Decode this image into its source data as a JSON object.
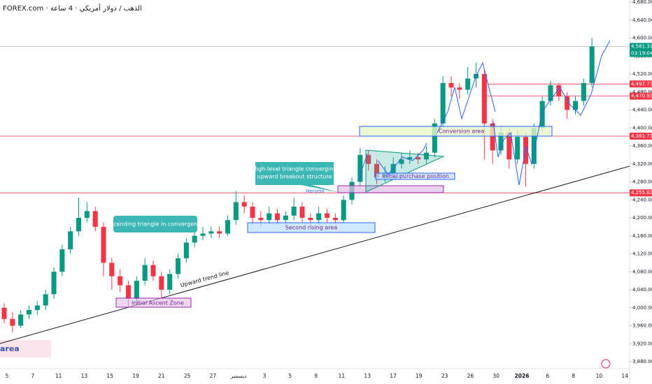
{
  "header": {
    "title": "FOREX.com · الذهب / دولار أمريكي · 4 ساعة"
  },
  "chart_data": {
    "type": "candlestick",
    "categories": [
      "5",
      "7",
      "11",
      "13",
      "15",
      "19",
      "21",
      "25",
      "27",
      "ديسمبر",
      "3",
      "5",
      "9",
      "11",
      "13",
      "17",
      "19",
      "23",
      "26",
      "30",
      "2026",
      "6",
      "8",
      "10",
      "14"
    ],
    "ohlc": [
      [
        4000,
        4010,
        3965,
        3975
      ],
      [
        3975,
        3990,
        3945,
        3960
      ],
      [
        3960,
        3995,
        3955,
        3985
      ],
      [
        3985,
        4005,
        3975,
        3995
      ],
      [
        3995,
        4015,
        3985,
        4005
      ],
      [
        4005,
        4040,
        3995,
        4030
      ],
      [
        4030,
        4090,
        4020,
        4080
      ],
      [
        4080,
        4140,
        4070,
        4130
      ],
      [
        4130,
        4180,
        4120,
        4170
      ],
      [
        4170,
        4245,
        4160,
        4200
      ],
      [
        4200,
        4235,
        4190,
        4215
      ],
      [
        4215,
        4225,
        4170,
        4180
      ],
      [
        4180,
        4190,
        4070,
        4100
      ],
      [
        4100,
        4110,
        4040,
        4070
      ],
      [
        4070,
        4085,
        4035,
        4050
      ],
      [
        4050,
        4060,
        4000,
        4020
      ],
      [
        4020,
        4070,
        4010,
        4060
      ],
      [
        4060,
        4110,
        4050,
        4095
      ],
      [
        4095,
        4105,
        4060,
        4070
      ],
      [
        4070,
        4080,
        4020,
        4040
      ],
      [
        4040,
        4085,
        4030,
        4075
      ],
      [
        4075,
        4120,
        4065,
        4110
      ],
      [
        4110,
        4155,
        4100,
        4145
      ],
      [
        4145,
        4175,
        4135,
        4160
      ],
      [
        4160,
        4180,
        4150,
        4165
      ],
      [
        4165,
        4180,
        4155,
        4170
      ],
      [
        4170,
        4180,
        4155,
        4165
      ],
      [
        4165,
        4205,
        4160,
        4195
      ],
      [
        4195,
        4260,
        4185,
        4235
      ],
      [
        4235,
        4250,
        4210,
        4225
      ],
      [
        4225,
        4235,
        4185,
        4200
      ],
      [
        4200,
        4215,
        4180,
        4195
      ],
      [
        4195,
        4225,
        4185,
        4210
      ],
      [
        4210,
        4220,
        4185,
        4195
      ],
      [
        4195,
        4215,
        4185,
        4205
      ],
      [
        4205,
        4245,
        4195,
        4225
      ],
      [
        4225,
        4235,
        4190,
        4200
      ],
      [
        4200,
        4210,
        4180,
        4195
      ],
      [
        4195,
        4225,
        4185,
        4210
      ],
      [
        4210,
        4220,
        4190,
        4200
      ],
      [
        4200,
        4210,
        4185,
        4195
      ],
      [
        4195,
        4250,
        4190,
        4240
      ],
      [
        4240,
        4290,
        4230,
        4280
      ],
      [
        4280,
        4355,
        4270,
        4340
      ],
      [
        4340,
        4350,
        4305,
        4320
      ],
      [
        4320,
        4330,
        4275,
        4290
      ],
      [
        4290,
        4315,
        4280,
        4300
      ],
      [
        4300,
        4335,
        4290,
        4320
      ],
      [
        4320,
        4345,
        4310,
        4330
      ],
      [
        4330,
        4350,
        4320,
        4335
      ],
      [
        4335,
        4345,
        4320,
        4330
      ],
      [
        4330,
        4360,
        4320,
        4345
      ],
      [
        4345,
        4420,
        4335,
        4410
      ],
      [
        4410,
        4515,
        4400,
        4500
      ],
      [
        4500,
        4515,
        4470,
        4490
      ],
      [
        4490,
        4500,
        4465,
        4485
      ],
      [
        4485,
        4535,
        4475,
        4510
      ],
      [
        4510,
        4545,
        4490,
        4520
      ],
      [
        4520,
        4530,
        4330,
        4410
      ],
      [
        4410,
        4420,
        4320,
        4350
      ],
      [
        4350,
        4405,
        4340,
        4390
      ],
      [
        4390,
        4400,
        4310,
        4330
      ],
      [
        4330,
        4395,
        4320,
        4380
      ],
      [
        4380,
        4390,
        4270,
        4320
      ],
      [
        4320,
        4410,
        4310,
        4400
      ],
      [
        4400,
        4470,
        4390,
        4460
      ],
      [
        4460,
        4505,
        4450,
        4495
      ],
      [
        4495,
        4500,
        4460,
        4470
      ],
      [
        4470,
        4480,
        4420,
        4440
      ],
      [
        4440,
        4470,
        4430,
        4460
      ],
      [
        4460,
        4510,
        4450,
        4500
      ],
      [
        4500,
        4600,
        4490,
        4581.31
      ]
    ],
    "colors": {
      "up": "#089981",
      "down": "#f23645"
    },
    "ylim": [
      3880,
      4680
    ],
    "yticks": [
      {
        "value": 3880,
        "label": "3,880.00"
      },
      {
        "value": 3920,
        "label": "3,920.00"
      },
      {
        "value": 3960,
        "label": "3,960.00"
      },
      {
        "value": 4000,
        "label": "4,000.00"
      },
      {
        "value": 4040,
        "label": "4,040.00"
      },
      {
        "value": 4080,
        "label": "4,080.00"
      },
      {
        "value": 4120,
        "label": "4,120.00"
      },
      {
        "value": 4160,
        "label": "4,160.00"
      },
      {
        "value": 4200,
        "label": "4,200.00"
      },
      {
        "value": 4240,
        "label": "4,240.00"
      },
      {
        "value": 4280,
        "label": "4,280.00"
      },
      {
        "value": 4320,
        "label": "4,320.00"
      },
      {
        "value": 4360,
        "label": "4,360.00"
      },
      {
        "value": 4400,
        "label": "4,400.00"
      },
      {
        "value": 4440,
        "label": "4,440.00"
      },
      {
        "value": 4480,
        "label": "4,480.00"
      },
      {
        "value": 4520,
        "label": "4,520.00"
      },
      {
        "value": 4560,
        "label": "4,560.00"
      },
      {
        "value": 4600,
        "label": "4,600.00"
      },
      {
        "value": 4640,
        "label": "4,640.00"
      },
      {
        "value": 4680,
        "label": "4,680.00"
      }
    ],
    "grid": false,
    "price_lines": [
      {
        "value": 4581.31,
        "label": "4,581.31",
        "color": "#089981",
        "line_color": "#b2b5be"
      },
      {
        "value": 4497.77,
        "label": "4,497.77",
        "color": "#f23645",
        "line_color": "#f23645"
      },
      {
        "value": 4470.93,
        "label": "4,470.93",
        "color": "#f23645",
        "line_color": "#f23645"
      },
      {
        "value": 4381.73,
        "label": "4,381.73",
        "color": "#f23645",
        "line_color": "#f23645"
      },
      {
        "value": 4255.62,
        "label": "4,255.62",
        "color": "#f23645",
        "line_color": "#f23645"
      }
    ],
    "countdown": "03:19:04",
    "annotations": {
      "ascending": "Ascending triangle in convergence",
      "high_level": [
        "High-level triangle converging",
        "upward breakout structure"
      ],
      "trend": "Upward trend line",
      "initial_ascent": "Initial Ascent Zone",
      "second_rising": "Second rising area",
      "horizon": "Horizon",
      "initial_purchase": "Initial purchase position",
      "conversion": "Conversion area",
      "area": "area"
    }
  }
}
